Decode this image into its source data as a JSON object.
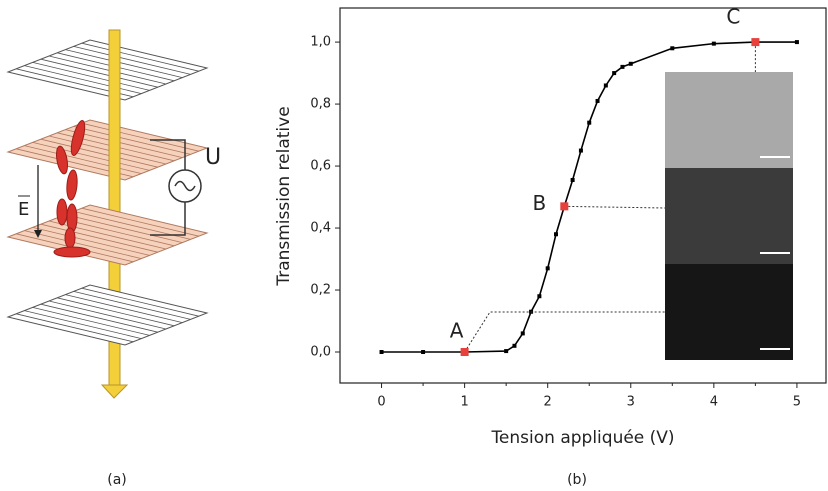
{
  "panel_labels": [
    "(a)",
    "(b)"
  ],
  "diagram": {
    "voltage_label": "U",
    "field_label": "E"
  },
  "chart_data": {
    "type": "line",
    "x_label": "Tension appliquée (V)",
    "y_label": "Transmission relative",
    "x": [
      0,
      0.5,
      1,
      1.5,
      1.6,
      1.7,
      1.8,
      1.9,
      2.0,
      2.1,
      2.2,
      2.3,
      2.4,
      2.5,
      2.6,
      2.7,
      2.8,
      2.9,
      3.0,
      3.5,
      4.0,
      4.5,
      5.0
    ],
    "series": [
      {
        "color": "#000000",
        "values": [
          0,
          0,
          0,
          0.003,
          0.02,
          0.06,
          0.13,
          0.18,
          0.27,
          0.38,
          0.47,
          0.555,
          0.65,
          0.74,
          0.81,
          0.86,
          0.9,
          0.92,
          0.93,
          0.98,
          0.995,
          1.0,
          1.0
        ]
      }
    ],
    "highlights": {
      "labels": [
        "A",
        "B",
        "C"
      ],
      "x": [
        1,
        2.2,
        4.5
      ],
      "y": [
        0,
        0.47,
        1.0
      ],
      "color": "#e8413c"
    },
    "xlim": [
      -0.5,
      5.35
    ],
    "ylim": [
      -0.1,
      1.11
    ],
    "xticks": [
      0,
      1,
      2,
      3,
      4,
      5
    ],
    "yticks": [
      {
        "value": 0,
        "label": "0,0"
      },
      {
        "value": 0.2,
        "label": "0,2"
      },
      {
        "value": 0.4,
        "label": "0,4"
      },
      {
        "value": 0.6,
        "label": "0,6"
      },
      {
        "value": 0.8,
        "label": "0,8"
      },
      {
        "value": 1.0,
        "label": "1,0"
      }
    ]
  }
}
